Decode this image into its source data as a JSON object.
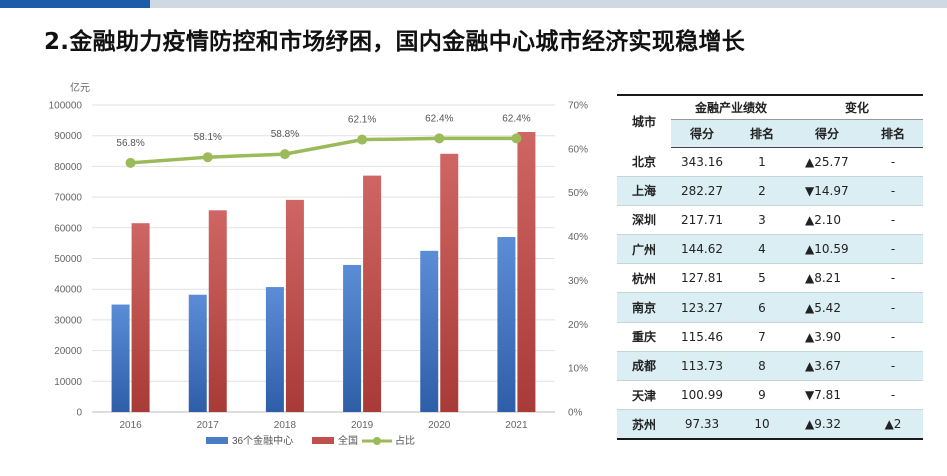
{
  "title": "2.金融助力疫情防控和市场纾困，国内金融中心城市经济实现稳增长",
  "chart_data": {
    "type": "bar",
    "categories": [
      "2016",
      "2017",
      "2018",
      "2019",
      "2020",
      "2021"
    ],
    "y_unit": "亿元",
    "ylim": [
      0,
      100000
    ],
    "y_ticks": [
      0,
      10000,
      20000,
      30000,
      40000,
      50000,
      60000,
      70000,
      80000,
      90000,
      100000
    ],
    "y2lim": [
      0,
      70
    ],
    "y2_ticks": [
      "0%",
      "10%",
      "20%",
      "30%",
      "40%",
      "50%",
      "60%",
      "70%"
    ],
    "series": [
      {
        "name": "36个金融中心",
        "type": "bar",
        "color": "#4a7cc4",
        "values": [
          35000,
          38200,
          40700,
          47900,
          52500,
          57000
        ]
      },
      {
        "name": "全国",
        "type": "bar",
        "color": "#c0504d",
        "values": [
          61500,
          65700,
          69100,
          77000,
          84100,
          91200
        ]
      },
      {
        "name": "占比",
        "type": "line",
        "color": "#9bbb59",
        "values": [
          56.8,
          58.1,
          58.8,
          62.1,
          62.4,
          62.4
        ],
        "labels": [
          "56.8%",
          "58.1%",
          "58.8%",
          "62.1%",
          "62.4%",
          "62.4%"
        ]
      }
    ],
    "legend": "bottom"
  },
  "table": {
    "headers": {
      "city": "城市",
      "group1": "金融产业绩效",
      "group2": "变化",
      "score": "得分",
      "rank": "排名",
      "chg_score": "得分",
      "chg_rank": "排名"
    },
    "rows": [
      {
        "city": "北京",
        "score": "343.16",
        "rank": "1",
        "chg": "▲25.77",
        "chg_rank": "-"
      },
      {
        "city": "上海",
        "score": "282.27",
        "rank": "2",
        "chg": "▼14.97",
        "chg_rank": "-"
      },
      {
        "city": "深圳",
        "score": "217.71",
        "rank": "3",
        "chg": "▲2.10",
        "chg_rank": "-"
      },
      {
        "city": "广州",
        "score": "144.62",
        "rank": "4",
        "chg": "▲10.59",
        "chg_rank": "-"
      },
      {
        "city": "杭州",
        "score": "127.81",
        "rank": "5",
        "chg": "▲8.21",
        "chg_rank": "-"
      },
      {
        "city": "南京",
        "score": "123.27",
        "rank": "6",
        "chg": "▲5.42",
        "chg_rank": "-"
      },
      {
        "city": "重庆",
        "score": "115.46",
        "rank": "7",
        "chg": "▲3.90",
        "chg_rank": "-"
      },
      {
        "city": "成都",
        "score": "113.73",
        "rank": "8",
        "chg": "▲3.67",
        "chg_rank": "-"
      },
      {
        "city": "天津",
        "score": "100.99",
        "rank": "9",
        "chg": "▼7.81",
        "chg_rank": "-"
      },
      {
        "city": "苏州",
        "score": "97.33",
        "rank": "10",
        "chg": "▲9.32",
        "chg_rank": "▲2"
      }
    ]
  }
}
